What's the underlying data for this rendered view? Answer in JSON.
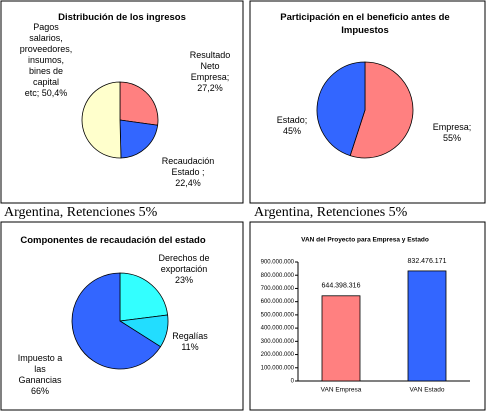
{
  "captions": [
    "Argentina, Retenciones 5%",
    "Argentina, Retenciones 5%"
  ],
  "chart_data": [
    {
      "type": "pie",
      "title": "Distribución de los ingresos",
      "categories": [
        "Resultado Neto Empresa",
        "Recaudación Estado",
        "Pagos salarios, proveedores, insumos, bines de capital etc"
      ],
      "values": [
        27.2,
        22.4,
        50.4
      ],
      "value_labels": [
        "Resultado Neto Empresa; 27,2%",
        "Recaudación Estado ; 22,4%",
        "Pagos salarios, proveedores, insumos, bines de capital etc; 50,4%"
      ],
      "colors": [
        "#ff8080",
        "#3366ff",
        "#ffffcc"
      ]
    },
    {
      "type": "pie",
      "title": "Participación  en el beneficio  antes de Impuestos",
      "categories": [
        "Empresa",
        "Estado"
      ],
      "values": [
        55,
        45
      ],
      "value_labels": [
        "Empresa; 55%",
        "Estado; 45%"
      ],
      "colors": [
        "#ff8080",
        "#3366ff"
      ]
    },
    {
      "type": "pie",
      "title": "Componentes de recaudación del estado",
      "categories": [
        "Derechos de exportación",
        "Regalías",
        "Impuesto a las Ganancias"
      ],
      "values": [
        23,
        11,
        66
      ],
      "value_labels": [
        "Derechos de exportación 23%",
        "Regalías 11%",
        "Impuesto a las Ganancias 66%"
      ],
      "colors": [
        "#33ffff",
        "#22ddff",
        "#3366ff"
      ]
    },
    {
      "type": "bar",
      "title": "VAN del Proyecto para Empresa y Estado",
      "categories": [
        "VAN Empresa",
        "VAN Estado"
      ],
      "values": [
        644398316,
        832476171
      ],
      "value_labels": [
        "644.398.316",
        "832.476.171"
      ],
      "colors": [
        "#ff8080",
        "#3366ff"
      ],
      "ylim": [
        0,
        900000000
      ],
      "yticks": [
        0,
        {
          "value": 100000000,
          "label": "100.000.000"
        },
        {
          "value": 200000000,
          "label": "200.000.000"
        },
        {
          "value": 300000000,
          "label": "300.000.000"
        },
        {
          "value": 400000000,
          "label": "400.000.000"
        },
        {
          "value": 500000000,
          "label": "500.000.000"
        },
        {
          "value": 600000000,
          "label": "600.000.000"
        },
        {
          "value": 700000000,
          "label": "700.000.000"
        },
        {
          "value": 800000000,
          "label": "800.000.000"
        },
        {
          "value": 900000000,
          "label": "900.000.000"
        }
      ]
    }
  ]
}
